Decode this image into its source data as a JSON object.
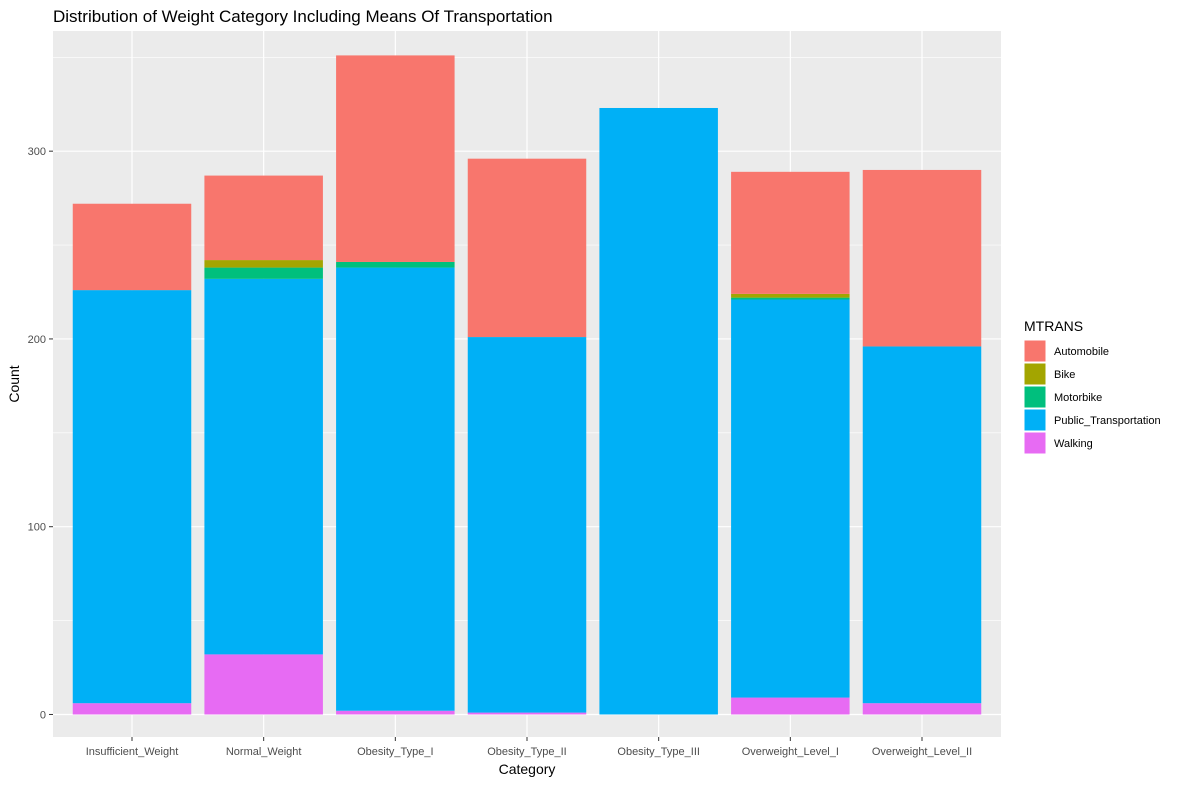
{
  "chart_data": {
    "type": "bar",
    "stacked": true,
    "title": "Distribution of Weight Category Including Means Of Transportation",
    "xlabel": "Category",
    "ylabel": "Count",
    "ylim": [
      -12,
      364
    ],
    "yticks": [
      0,
      100,
      200,
      300
    ],
    "grid": true,
    "legend_title": "MTRANS",
    "legend_position": "right",
    "categories": [
      "Insufficient_Weight",
      "Normal_Weight",
      "Obesity_Type_I",
      "Obesity_Type_II",
      "Obesity_Type_III",
      "Overweight_Level_I",
      "Overweight_Level_II"
    ],
    "series": [
      {
        "name": "Automobile",
        "color": "#F8766D",
        "values": [
          46,
          45,
          110,
          95,
          0,
          65,
          94
        ]
      },
      {
        "name": "Bike",
        "color": "#A3A500",
        "values": [
          0,
          4,
          0,
          0,
          0,
          2,
          0
        ]
      },
      {
        "name": "Motorbike",
        "color": "#00BF7D",
        "values": [
          0,
          6,
          3,
          0,
          0,
          1,
          0
        ]
      },
      {
        "name": "Public_Transportation",
        "color": "#00B0F6",
        "values": [
          220,
          200,
          236,
          200,
          323,
          212,
          190
        ]
      },
      {
        "name": "Walking",
        "color": "#E76BF3",
        "values": [
          6,
          32,
          2,
          1,
          0,
          9,
          6
        ]
      }
    ]
  }
}
